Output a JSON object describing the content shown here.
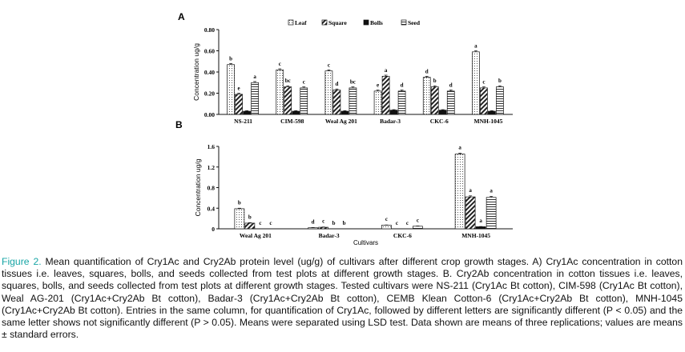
{
  "chart_data": [
    {
      "panel": "A",
      "type": "bar",
      "ylabel": "Concentration ug/g",
      "xlabel": "",
      "ylim": [
        0,
        0.8
      ],
      "yticks": [
        "0.00",
        "0.20",
        "0.40",
        "0.60",
        "0.80"
      ],
      "legend_position": "top",
      "categories": [
        "NS-211",
        "CIM-598",
        "Weal Ag 201",
        "Badar-3",
        "CKC-6",
        "MNH-1045"
      ],
      "series": [
        {
          "name": "Leaf",
          "pattern": "dots",
          "values": [
            0.47,
            0.42,
            0.41,
            0.22,
            0.35,
            0.59
          ],
          "errors": [
            0.01,
            0.01,
            0.01,
            0.01,
            0.01,
            0.01
          ],
          "labels": [
            "b",
            "c",
            "c",
            "e",
            "d",
            "a"
          ]
        },
        {
          "name": "Square",
          "pattern": "hatch",
          "values": [
            0.19,
            0.26,
            0.23,
            0.36,
            0.26,
            0.25
          ],
          "errors": [
            0.01,
            0.01,
            0.01,
            0.01,
            0.01,
            0.01
          ],
          "labels": [
            "e",
            "bc",
            "d",
            "a",
            "b",
            "c"
          ]
        },
        {
          "name": "Bolls",
          "pattern": "solid",
          "values": [
            0.03,
            0.03,
            0.03,
            0.04,
            0.04,
            0.03
          ],
          "errors": [
            0.005,
            0.005,
            0.005,
            0.005,
            0.005,
            0.005
          ],
          "labels": [
            "",
            "",
            "",
            "",
            "",
            ""
          ]
        },
        {
          "name": "Seed",
          "pattern": "lines",
          "values": [
            0.3,
            0.25,
            0.25,
            0.22,
            0.22,
            0.26
          ],
          "errors": [
            0.01,
            0.01,
            0.01,
            0.01,
            0.01,
            0.01
          ],
          "labels": [
            "a",
            "c",
            "bc",
            "d",
            "d",
            "b"
          ]
        }
      ]
    },
    {
      "panel": "B",
      "type": "bar",
      "ylabel": "Concentration ug/g",
      "xlabel": "Cultivars",
      "ylim": [
        0,
        1.6
      ],
      "yticks": [
        "0",
        "0.4",
        "0.8",
        "1.2",
        "1.6"
      ],
      "categories": [
        "Weal Ag 201",
        "Badar-3",
        "CKC-6",
        "MNH-1045"
      ],
      "series": [
        {
          "name": "Leaf",
          "pattern": "dots",
          "values": [
            0.39,
            0.02,
            0.07,
            1.45
          ],
          "errors": [
            0.01,
            0.005,
            0.005,
            0.02
          ],
          "labels": [
            "b",
            "d",
            "c",
            "a"
          ]
        },
        {
          "name": "Square",
          "pattern": "hatch",
          "values": [
            0.11,
            0.03,
            0.0,
            0.62
          ],
          "errors": [
            0.01,
            0.005,
            0.0,
            0.02
          ],
          "labels": [
            "b",
            "c",
            "c",
            "a"
          ]
        },
        {
          "name": "Bolls",
          "pattern": "solid",
          "values": [
            0.0,
            0.0,
            0.0,
            0.04
          ],
          "errors": [
            0.0,
            0.0,
            0.0,
            0.005
          ],
          "labels": [
            "c",
            "b",
            "c",
            "a"
          ]
        },
        {
          "name": "Seed",
          "pattern": "lines",
          "values": [
            0.0,
            0.0,
            0.05,
            0.61
          ],
          "errors": [
            0.0,
            0.0,
            0.005,
            0.02
          ],
          "labels": [
            "c",
            "b",
            "c",
            "a"
          ]
        }
      ]
    }
  ],
  "caption": {
    "figure_label": "Figure 2.",
    "text": " Mean quantification of Cry1Ac and Cry2Ab protein level (ug/g) of cultivars after different crop growth stages. A) Cry1Ac concentration in cotton tissues i.e. leaves, squares, bolls, and seeds collected from test plots at different growth stages. B. Cry2Ab concentration in cotton tissues i.e. leaves, squares, bolls, and seeds collected from test plots at different growth stages. Tested cultivars were NS-211 (Cry1Ac Bt cotton), CIM-598 (Cry1Ac Bt cotton), Weal AG-201 (Cry1Ac+Cry2Ab Bt cotton), Badar-3 (Cry1Ac+Cry2Ab Bt cotton), CEMB Klean Cotton-6 (Cry1Ac+Cry2Ab Bt cotton), MNH-1045 (Cry1Ac+Cry2Ab Bt cotton). Entries in the same column, for quantification of Cry1Ac, followed by different letters are significantly different (P < 0.05) and the same letter shows not significantly different (P > 0.05). Means were separated using LSD test. Data shown are means of three replications; values are means ± standard errors."
  }
}
